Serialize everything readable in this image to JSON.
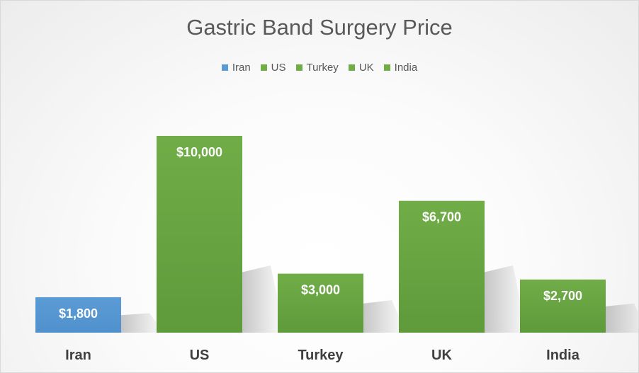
{
  "chart_data": {
    "type": "bar",
    "title": "Gastric Band Surgery Price",
    "xlabel": "",
    "ylabel": "",
    "ylim": [
      0,
      10000
    ],
    "grid": false,
    "legend_position": "top",
    "categories": [
      "Iran",
      "US",
      "Turkey",
      "UK",
      "India"
    ],
    "values": [
      1800,
      10000,
      3000,
      6700,
      2700
    ],
    "data_labels": [
      "$1,800",
      "$10,000",
      "$3,000",
      "$6,700",
      "$2,700"
    ],
    "colors": [
      "#5b9bd5",
      "#70ad47",
      "#70ad47",
      "#70ad47",
      "#70ad47"
    ],
    "legend": [
      {
        "label": "Iran",
        "color": "#5b9bd5"
      },
      {
        "label": "US",
        "color": "#70ad47"
      },
      {
        "label": "Turkey",
        "color": "#70ad47"
      },
      {
        "label": "UK",
        "color": "#70ad47"
      },
      {
        "label": "India",
        "color": "#70ad47"
      }
    ]
  }
}
